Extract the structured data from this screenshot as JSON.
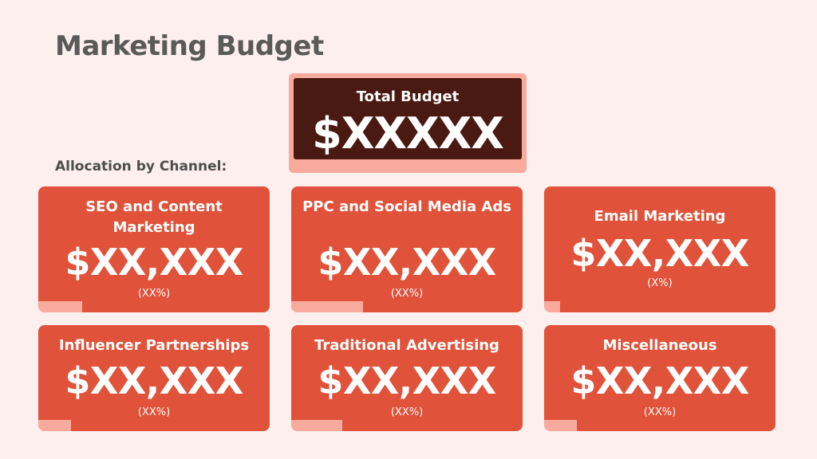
{
  "title": "Marketing Budget",
  "total": {
    "label": "Total Budget",
    "value": "$XXXXX"
  },
  "allocation_label": "Allocation by Channel:",
  "colors": {
    "background": "#fcefed",
    "card": "#e0523a",
    "total_card": "#4a1912",
    "accent": "#f8ab9c",
    "title_text": "#5a5a5a"
  },
  "channels": [
    {
      "name": "SEO and Content Marketing",
      "amount": "$XX,XXX",
      "percent": "(XX%)",
      "share": 0.19
    },
    {
      "name": "PPC and Social Media Ads",
      "amount": "$XX,XXX",
      "percent": "(XX%)",
      "share": 0.31
    },
    {
      "name": "Email Marketing",
      "amount": "$XX,XXX",
      "percent": "(X%)",
      "share": 0.07
    },
    {
      "name": "Influencer Partnerships",
      "amount": "$XX,XXX",
      "percent": "(XX%)",
      "share": 0.14
    },
    {
      "name": "Traditional Advertising",
      "amount": "$XX,XXX",
      "percent": "(XX%)",
      "share": 0.22
    },
    {
      "name": "Miscellaneous",
      "amount": "$XX,XXX",
      "percent": "(XX%)",
      "share": 0.14
    }
  ]
}
